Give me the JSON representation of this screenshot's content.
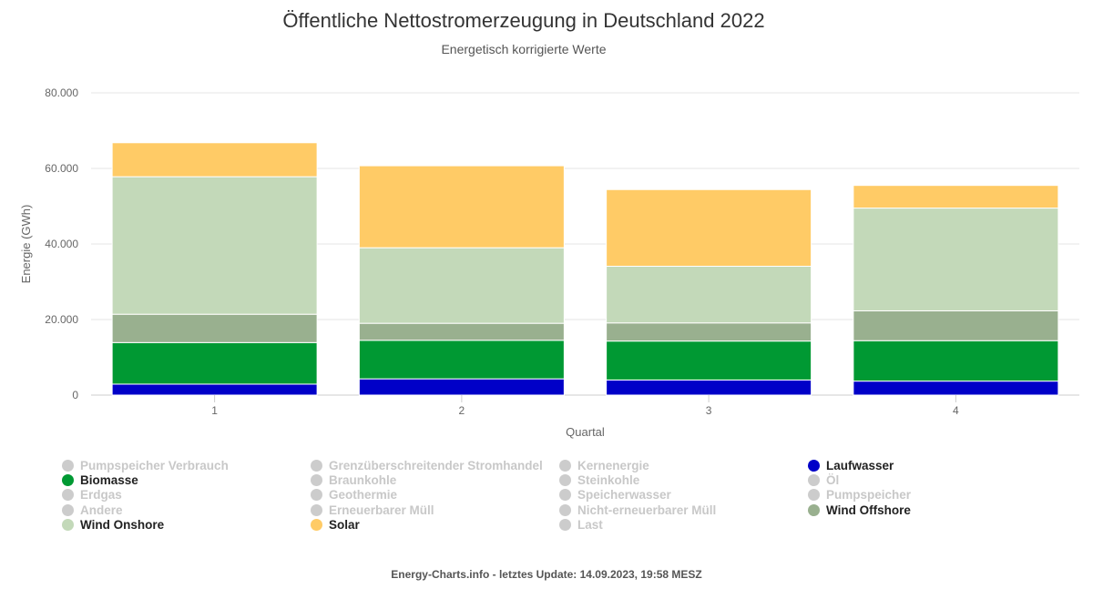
{
  "chart_data": {
    "type": "bar",
    "stacked": true,
    "title": "Öffentliche Nettostromerzeugung in Deutschland 2022",
    "subtitle": "Energetisch korrigierte Werte",
    "xlabel": "Quartal",
    "ylabel": "Energie (GWh)",
    "categories": [
      "1",
      "2",
      "3",
      "4"
    ],
    "ylim": [
      0,
      80000
    ],
    "yticks": [
      0,
      20000,
      40000,
      60000,
      80000
    ],
    "ytick_labels": [
      "0",
      "20.000",
      "40.000",
      "60.000",
      "80.000"
    ],
    "series": [
      {
        "name": "Laufwasser",
        "color": "#0000c8",
        "values": [
          2900,
          4300,
          4000,
          3700
        ]
      },
      {
        "name": "Biomasse",
        "color": "#009933",
        "values": [
          11000,
          10200,
          10300,
          10700
        ]
      },
      {
        "name": "Wind Offshore",
        "color": "#99b08f",
        "values": [
          7500,
          4500,
          4800,
          7900
        ]
      },
      {
        "name": "Wind Onshore",
        "color": "#c3d9b9",
        "values": [
          36400,
          20000,
          15000,
          27200
        ]
      },
      {
        "name": "Solar",
        "color": "#ffcb66",
        "values": [
          9000,
          21700,
          20300,
          6000
        ]
      }
    ],
    "legend": [
      {
        "label": "Pumpspeicher Verbrauch",
        "active": false,
        "color": "#cccccc"
      },
      {
        "label": "Grenzüberschreitender Stromhandel",
        "active": false,
        "color": "#cccccc"
      },
      {
        "label": "Kernenergie",
        "active": false,
        "color": "#cccccc"
      },
      {
        "label": "Laufwasser",
        "active": true,
        "color": "#0000c8"
      },
      {
        "label": "Biomasse",
        "active": true,
        "color": "#009933"
      },
      {
        "label": "Braunkohle",
        "active": false,
        "color": "#cccccc"
      },
      {
        "label": "Steinkohle",
        "active": false,
        "color": "#cccccc"
      },
      {
        "label": "Öl",
        "active": false,
        "color": "#cccccc"
      },
      {
        "label": "Erdgas",
        "active": false,
        "color": "#cccccc"
      },
      {
        "label": "Geothermie",
        "active": false,
        "color": "#cccccc"
      },
      {
        "label": "Speicherwasser",
        "active": false,
        "color": "#cccccc"
      },
      {
        "label": "Pumpspeicher",
        "active": false,
        "color": "#cccccc"
      },
      {
        "label": "Andere",
        "active": false,
        "color": "#cccccc"
      },
      {
        "label": "Erneuerbarer Müll",
        "active": false,
        "color": "#cccccc"
      },
      {
        "label": "Nicht-erneuerbarer Müll",
        "active": false,
        "color": "#cccccc"
      },
      {
        "label": "Wind Offshore",
        "active": true,
        "color": "#99b08f"
      },
      {
        "label": "Wind Onshore",
        "active": true,
        "color": "#c3d9b9"
      },
      {
        "label": "Solar",
        "active": true,
        "color": "#ffcb66"
      },
      {
        "label": "Last",
        "active": false,
        "color": "#cccccc"
      }
    ],
    "legend_position": "bottom"
  },
  "footer": "Energy-Charts.info - letztes Update: 14.09.2023, 19:58 MESZ"
}
